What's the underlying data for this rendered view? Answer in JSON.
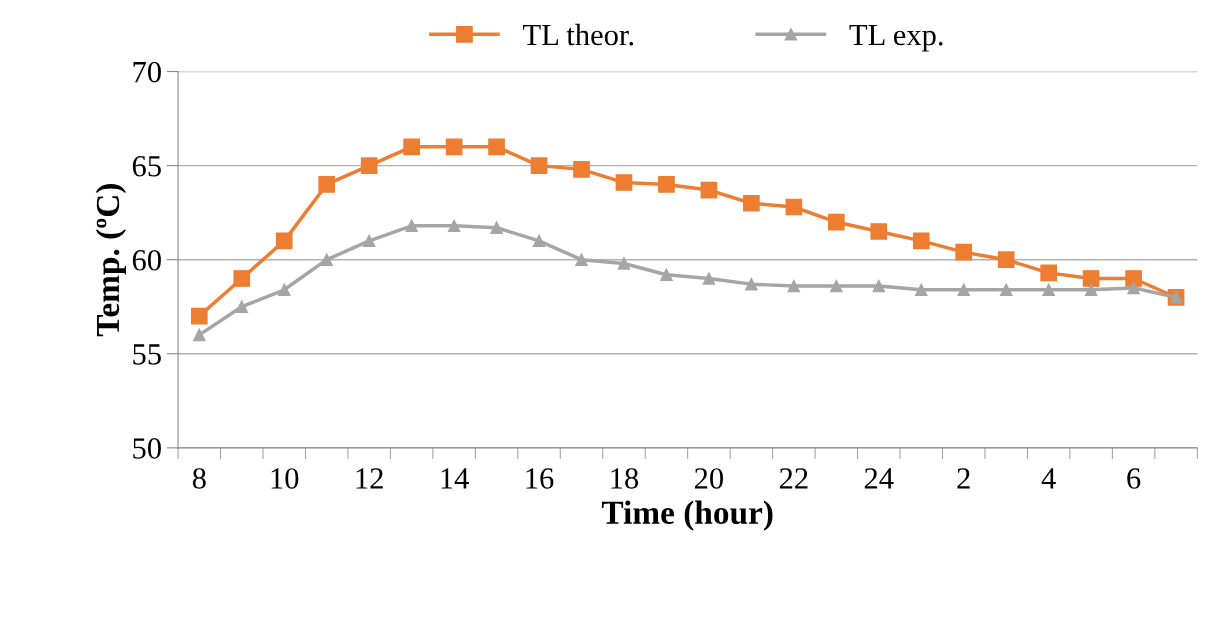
{
  "chart_data": {
    "type": "line",
    "xlabel": "Time (hour)",
    "ylabel": "Temp. (ºC)",
    "categories": [
      "8",
      null,
      "10",
      null,
      "12",
      null,
      "14",
      null,
      "16",
      null,
      "18",
      null,
      "20",
      null,
      "22",
      null,
      "24",
      null,
      "2",
      null,
      "4",
      null,
      "6",
      null
    ],
    "series": [
      {
        "name": "TL theor.",
        "color": "#ed7d31",
        "marker": "square",
        "values": [
          57,
          59,
          61,
          64,
          65,
          66,
          66,
          66,
          65,
          64.8,
          64.1,
          64,
          63.7,
          63,
          62.8,
          62,
          61.5,
          61,
          60.4,
          60,
          59.3,
          59,
          59,
          58
        ]
      },
      {
        "name": "TL exp.",
        "color": "#a5a5a5",
        "marker": "triangle",
        "values": [
          56,
          57.5,
          58.4,
          60,
          61,
          61.8,
          61.8,
          61.7,
          61,
          60,
          59.8,
          59.2,
          59,
          58.7,
          58.6,
          58.6,
          58.6,
          58.4,
          58.4,
          58.4,
          58.4,
          58.4,
          58.5,
          58
        ]
      }
    ],
    "ylim": [
      50,
      70
    ],
    "yticks": [
      50,
      55,
      60,
      65,
      70
    ],
    "grid": "y",
    "legend": "top",
    "line_style": "solid"
  }
}
